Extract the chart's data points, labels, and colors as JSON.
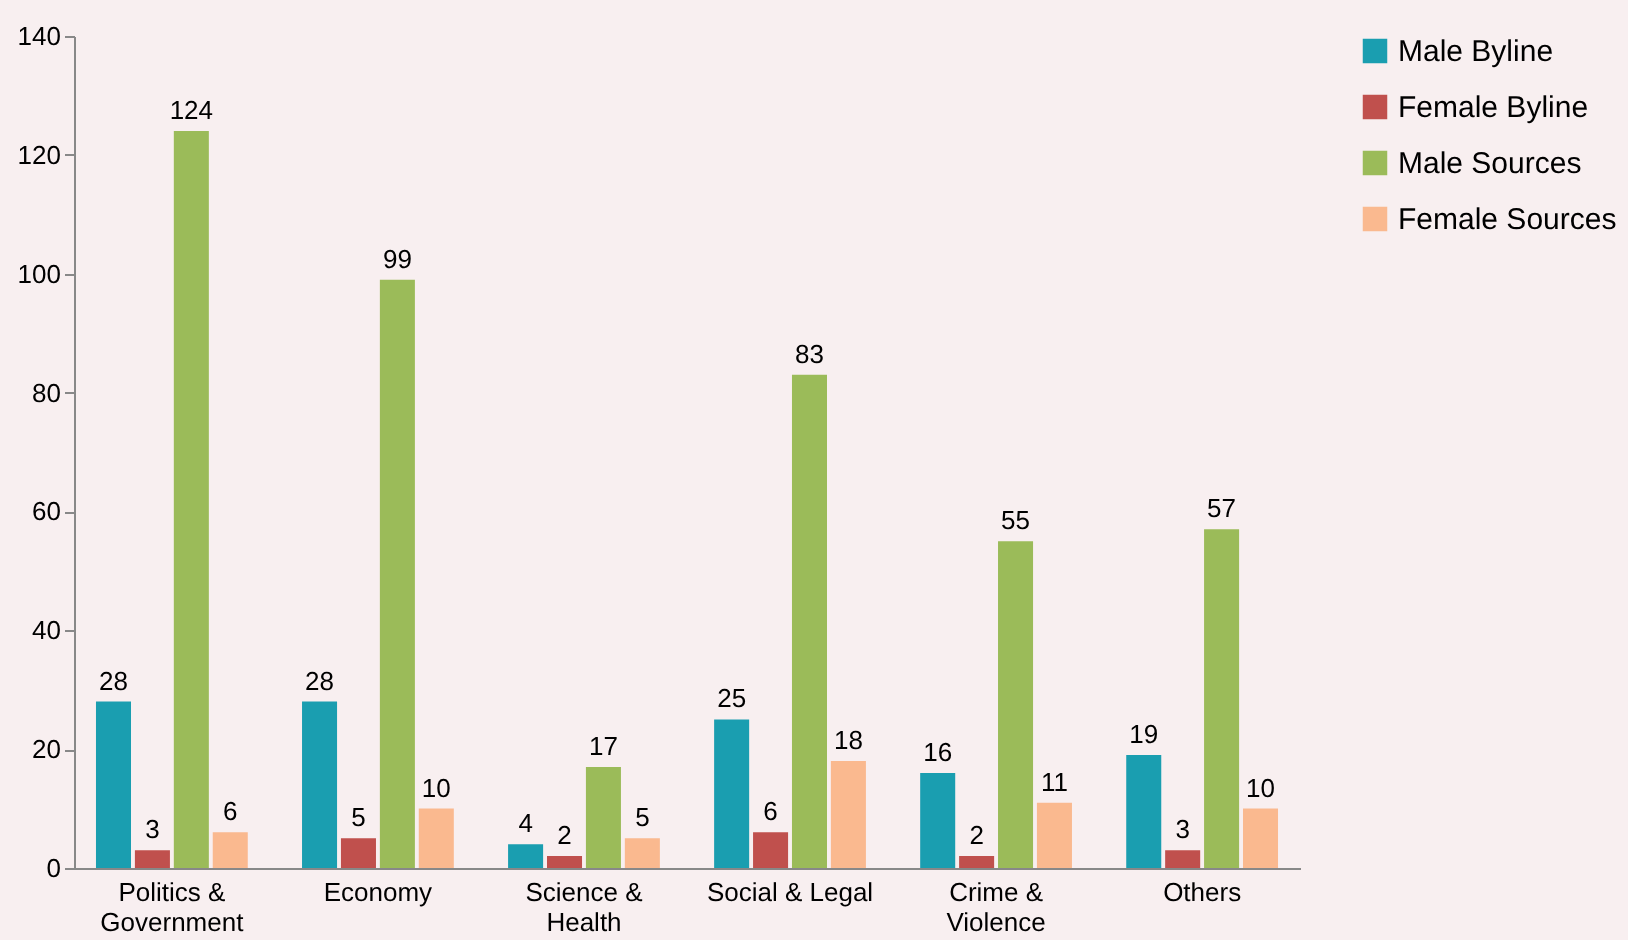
{
  "chart_data": {
    "type": "bar",
    "categories": [
      "Politics & Government",
      "Economy",
      "Science & Health",
      "Social & Legal",
      "Crime & Violence",
      "Others"
    ],
    "series": [
      {
        "name": "Male Byline",
        "color": "#1a9eb0",
        "values": [
          28,
          28,
          4,
          25,
          16,
          19
        ]
      },
      {
        "name": "Female Byline",
        "color": "#c0504d",
        "values": [
          3,
          5,
          2,
          6,
          2,
          3
        ]
      },
      {
        "name": "Male Sources",
        "color": "#9bbb59",
        "values": [
          124,
          99,
          17,
          83,
          55,
          57
        ]
      },
      {
        "name": "Female Sources",
        "color": "#fab98f",
        "values": [
          6,
          10,
          5,
          18,
          11,
          10
        ]
      }
    ],
    "ylim": [
      0,
      140
    ],
    "yticks": [
      0,
      20,
      40,
      60,
      80,
      100,
      120,
      140
    ],
    "data_labels": true,
    "grid": false,
    "legend": "right"
  }
}
